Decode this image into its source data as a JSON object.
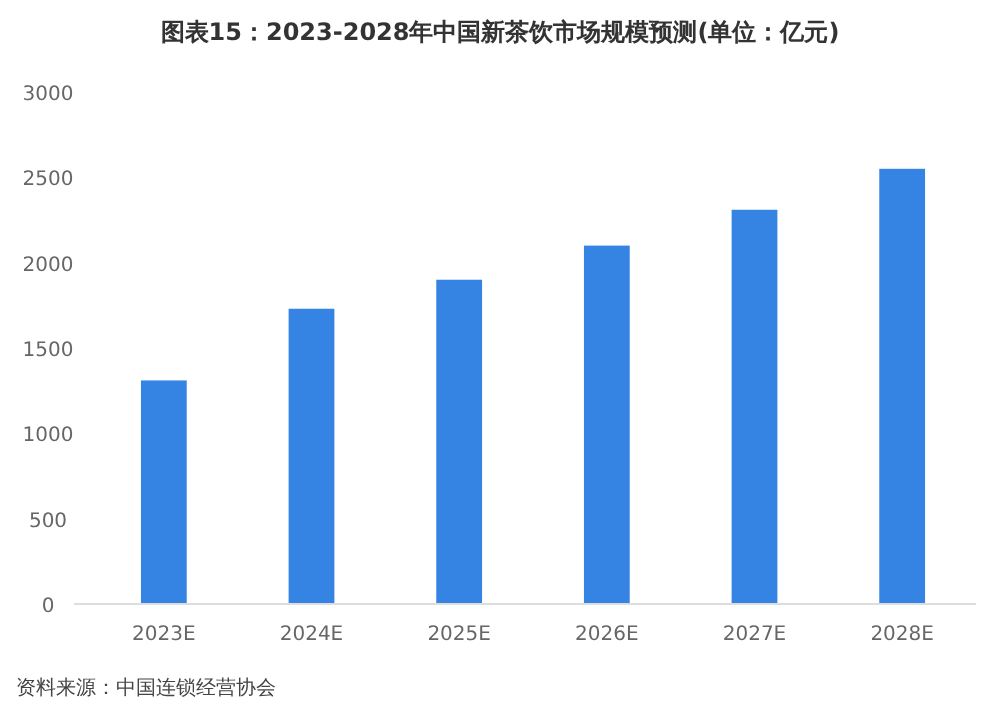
{
  "chart_data": {
    "type": "bar",
    "title": "图表15：2023-2028年中国新茶饮市场规模预测(单位：亿元)",
    "categories": [
      "2023E",
      "2024E",
      "2025E",
      "2026E",
      "2027E",
      "2028E"
    ],
    "values": [
      1310,
      1730,
      1900,
      2100,
      2310,
      2550
    ],
    "color": "#3584e4",
    "ylim": [
      0,
      3000
    ],
    "yticks": [
      0,
      500,
      1000,
      1500,
      2000,
      2500,
      3000
    ],
    "annotations": [
      "资料来源：中国连锁经营协会"
    ]
  }
}
